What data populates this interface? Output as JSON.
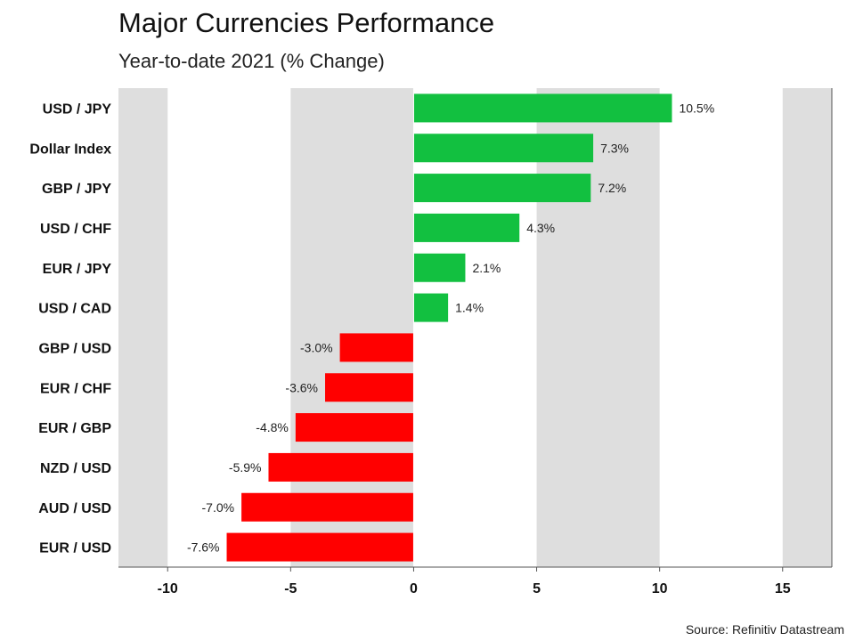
{
  "title": "Major Currencies Performance",
  "subtitle": "Year-to-date 2021 (% Change)",
  "source": "Source: Refinitiv Datastream",
  "colors": {
    "positive": "#12c040",
    "negative": "#ff0000",
    "band": "#dedede",
    "axis": "#555555"
  },
  "chart_data": {
    "type": "bar",
    "orientation": "horizontal",
    "title": "Major Currencies Performance",
    "subtitle": "Year-to-date 2021 (% Change)",
    "xlabel": "",
    "ylabel": "",
    "xlim": [
      -12,
      17
    ],
    "xticks": [
      -10,
      -5,
      0,
      5,
      10,
      15
    ],
    "xtick_labels": [
      "-10",
      "-5",
      "0",
      "5",
      "10",
      "15"
    ],
    "grid": "alternating vertical bands",
    "legend": "none",
    "categories": [
      "USD / JPY",
      "Dollar Index",
      "GBP / JPY",
      "USD / CHF",
      "EUR / JPY",
      "USD / CAD",
      "GBP / USD",
      "EUR / CHF",
      "EUR / GBP",
      "NZD / USD",
      "AUD / USD",
      "EUR / USD"
    ],
    "values": [
      10.5,
      7.3,
      7.2,
      4.3,
      2.1,
      1.4,
      -3.0,
      -3.6,
      -4.8,
      -5.9,
      -7.0,
      -7.6
    ],
    "labels": [
      "10.5%",
      "7.3%",
      "7.2%",
      "4.3%",
      "2.1%",
      "1.4%",
      "-3.0%",
      "-3.6%",
      "-4.8%",
      "-5.9%",
      "-7.0%",
      "-7.6%"
    ]
  }
}
